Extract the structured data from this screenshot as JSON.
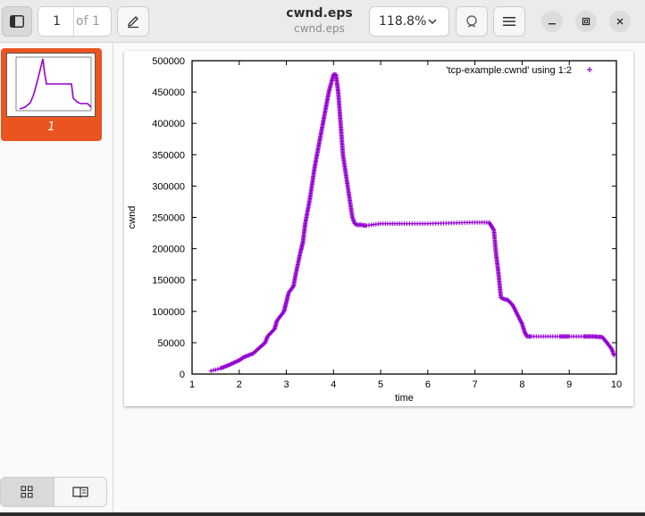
{
  "header": {
    "page_current": "1",
    "page_of": "of 1",
    "title": "cwnd.eps",
    "subtitle": "cwnd.eps",
    "zoom": "118.8%",
    "icons": {
      "sidebar": "sidebar-toggle-icon",
      "annotate": "pencil-icon",
      "zoom_dropdown": "chevron-down-icon",
      "search": "search-icon",
      "menu": "hamburger-menu-icon",
      "minimize": "minimize-icon",
      "maximize": "maximize-icon",
      "close": "close-icon"
    }
  },
  "sidebar": {
    "thumbnail_label": "1",
    "accent_color": "#e95420",
    "view_modes": [
      "thumbnails-grid-icon",
      "document-outline-icon"
    ]
  },
  "chart_data": {
    "type": "scatter",
    "title": "",
    "xlabel": "time",
    "ylabel": "cwnd",
    "xlim": [
      1,
      10
    ],
    "ylim": [
      0,
      500000
    ],
    "xticks": [
      "1",
      "2",
      "3",
      "4",
      "5",
      "6",
      "7",
      "8",
      "9",
      "10"
    ],
    "yticks": [
      "0",
      "50000",
      "100000",
      "150000",
      "200000",
      "250000",
      "300000",
      "350000",
      "400000",
      "450000",
      "500000"
    ],
    "legend": "'tcp-example.cwnd' using 1:2",
    "legend_position": "top-right",
    "grid": false,
    "series": [
      {
        "name": "'tcp-example.cwnd' using 1:2",
        "color": "#9400d3",
        "marker": "+",
        "x": [
          1.4,
          1.6,
          1.8,
          2.0,
          2.1,
          2.3,
          2.4,
          2.55,
          2.6,
          2.75,
          2.8,
          2.95,
          3.0,
          3.05,
          3.15,
          3.2,
          3.3,
          3.35,
          3.4,
          3.5,
          3.6,
          3.7,
          3.8,
          3.9,
          4.0,
          4.05,
          4.1,
          4.15,
          4.2,
          4.3,
          4.4,
          4.45,
          4.5,
          4.6,
          4.65,
          4.7,
          5.0,
          5.2,
          5.5,
          6.0,
          6.5,
          7.0,
          7.3,
          7.4,
          7.45,
          7.5,
          7.55,
          7.6,
          7.7,
          7.8,
          7.9,
          8.0,
          8.05,
          8.1,
          8.2,
          8.5,
          8.8,
          9.0,
          9.3,
          9.5,
          9.7,
          9.8,
          9.85,
          9.9,
          9.95
        ],
        "y": [
          5000,
          9000,
          15000,
          22000,
          27000,
          33000,
          40000,
          50000,
          60000,
          72000,
          85000,
          100000,
          115000,
          130000,
          140000,
          160000,
          195000,
          210000,
          240000,
          280000,
          330000,
          370000,
          410000,
          450000,
          478000,
          478000,
          450000,
          400000,
          350000,
          300000,
          250000,
          240000,
          238000,
          238000,
          237000,
          237000,
          240000,
          240000,
          240000,
          240000,
          241000,
          242000,
          242000,
          230000,
          190000,
          160000,
          122000,
          120000,
          118000,
          110000,
          95000,
          80000,
          68000,
          60000,
          60000,
          60000,
          60000,
          60000,
          60000,
          60000,
          59000,
          50000,
          45000,
          40000,
          30000
        ]
      }
    ]
  }
}
